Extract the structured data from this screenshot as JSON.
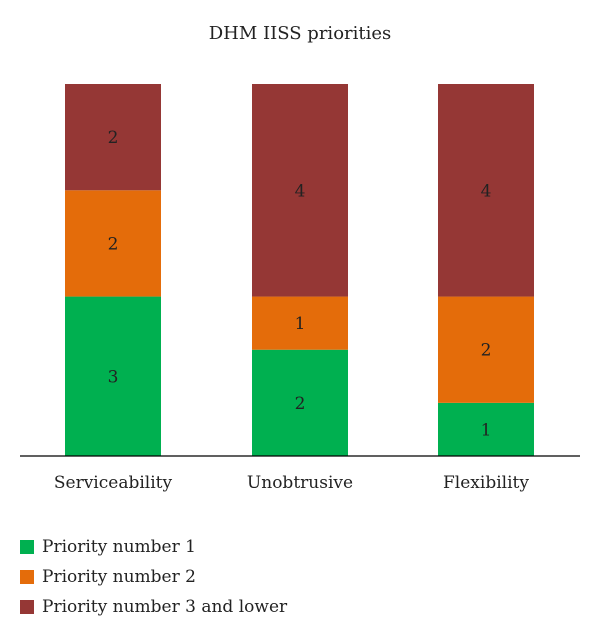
{
  "chart_data": {
    "type": "bar",
    "stacked": true,
    "title": "DHM IISS priorities",
    "xlabel": "",
    "ylabel": "",
    "categories": [
      "Serviceability",
      "Unobtrusive",
      "Flexibility"
    ],
    "series": [
      {
        "name": "Priority number 1",
        "values": [
          3,
          2,
          1
        ],
        "color": "#00b050"
      },
      {
        "name": "Priority number 2",
        "values": [
          2,
          1,
          2
        ],
        "color": "#e46c0a"
      },
      {
        "name": "Priority number 3 and lower",
        "values": [
          2,
          4,
          4
        ],
        "color": "#953735"
      }
    ],
    "ylim": [
      0,
      7
    ],
    "grid": false,
    "data_labels": true,
    "legend_position": "bottom-left"
  }
}
